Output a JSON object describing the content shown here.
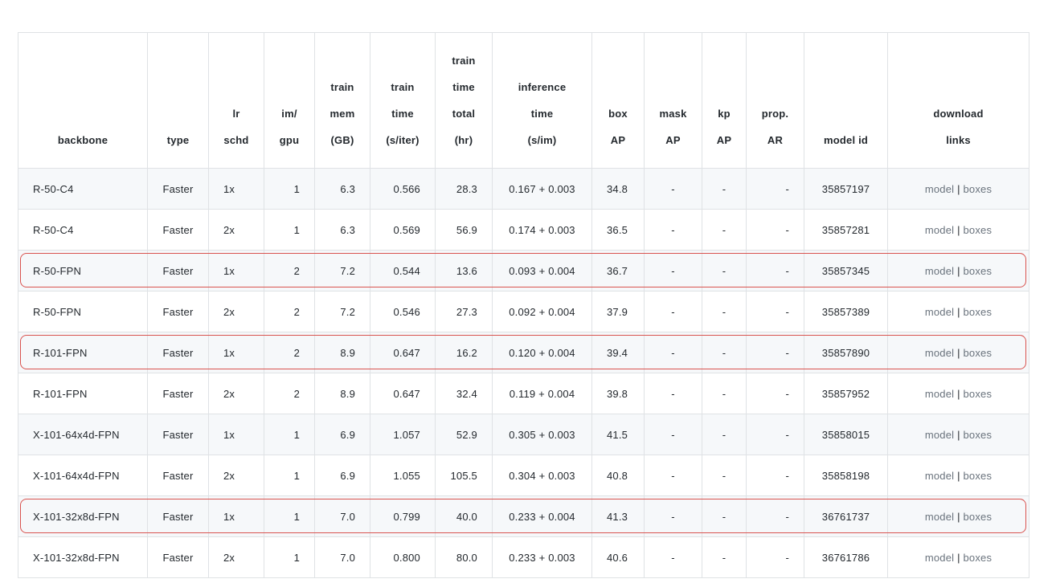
{
  "headers": [
    {
      "key": "backbone",
      "lines": [
        "backbone"
      ]
    },
    {
      "key": "type",
      "lines": [
        "type"
      ]
    },
    {
      "key": "lr_schd",
      "lines": [
        "lr",
        "schd"
      ]
    },
    {
      "key": "im_gpu",
      "lines": [
        "im/",
        "gpu"
      ]
    },
    {
      "key": "train_mem",
      "lines": [
        "train",
        "mem",
        "(GB)"
      ]
    },
    {
      "key": "train_time",
      "lines": [
        "train",
        "time",
        "(s/iter)"
      ]
    },
    {
      "key": "train_time_total",
      "lines": [
        "train",
        "time",
        "total",
        "(hr)"
      ]
    },
    {
      "key": "inference_time",
      "lines": [
        "inference",
        "time",
        "(s/im)"
      ]
    },
    {
      "key": "box_ap",
      "lines": [
        "box",
        "AP"
      ]
    },
    {
      "key": "mask_ap",
      "lines": [
        "mask",
        "AP"
      ]
    },
    {
      "key": "kp_ap",
      "lines": [
        "kp",
        "AP"
      ]
    },
    {
      "key": "prop_ar",
      "lines": [
        "prop.",
        "AR"
      ]
    },
    {
      "key": "model_id",
      "lines": [
        "model id"
      ]
    },
    {
      "key": "download_links",
      "lines": [
        "download",
        "links"
      ]
    }
  ],
  "rows": [
    {
      "backbone": "R-50-C4",
      "type": "Faster",
      "lr_schd": "1x",
      "im_gpu": "1",
      "train_mem": "6.3",
      "train_time": "0.566",
      "train_time_total": "28.3",
      "inference_time": "0.167 + 0.003",
      "box_ap": "34.8",
      "mask_ap": "-",
      "kp_ap": "-",
      "prop_ar": "-",
      "model_id": "35857197",
      "highlighted": false
    },
    {
      "backbone": "R-50-C4",
      "type": "Faster",
      "lr_schd": "2x",
      "im_gpu": "1",
      "train_mem": "6.3",
      "train_time": "0.569",
      "train_time_total": "56.9",
      "inference_time": "0.174 + 0.003",
      "box_ap": "36.5",
      "mask_ap": "-",
      "kp_ap": "-",
      "prop_ar": "-",
      "model_id": "35857281",
      "highlighted": false
    },
    {
      "backbone": "R-50-FPN",
      "type": "Faster",
      "lr_schd": "1x",
      "im_gpu": "2",
      "train_mem": "7.2",
      "train_time": "0.544",
      "train_time_total": "13.6",
      "inference_time": "0.093 + 0.004",
      "box_ap": "36.7",
      "mask_ap": "-",
      "kp_ap": "-",
      "prop_ar": "-",
      "model_id": "35857345",
      "highlighted": true
    },
    {
      "backbone": "R-50-FPN",
      "type": "Faster",
      "lr_schd": "2x",
      "im_gpu": "2",
      "train_mem": "7.2",
      "train_time": "0.546",
      "train_time_total": "27.3",
      "inference_time": "0.092 + 0.004",
      "box_ap": "37.9",
      "mask_ap": "-",
      "kp_ap": "-",
      "prop_ar": "-",
      "model_id": "35857389",
      "highlighted": false
    },
    {
      "backbone": "R-101-FPN",
      "type": "Faster",
      "lr_schd": "1x",
      "im_gpu": "2",
      "train_mem": "8.9",
      "train_time": "0.647",
      "train_time_total": "16.2",
      "inference_time": "0.120 + 0.004",
      "box_ap": "39.4",
      "mask_ap": "-",
      "kp_ap": "-",
      "prop_ar": "-",
      "model_id": "35857890",
      "highlighted": true
    },
    {
      "backbone": "R-101-FPN",
      "type": "Faster",
      "lr_schd": "2x",
      "im_gpu": "2",
      "train_mem": "8.9",
      "train_time": "0.647",
      "train_time_total": "32.4",
      "inference_time": "0.119 + 0.004",
      "box_ap": "39.8",
      "mask_ap": "-",
      "kp_ap": "-",
      "prop_ar": "-",
      "model_id": "35857952",
      "highlighted": false
    },
    {
      "backbone": "X-101-64x4d-FPN",
      "type": "Faster",
      "lr_schd": "1x",
      "im_gpu": "1",
      "train_mem": "6.9",
      "train_time": "1.057",
      "train_time_total": "52.9",
      "inference_time": "0.305 + 0.003",
      "box_ap": "41.5",
      "mask_ap": "-",
      "kp_ap": "-",
      "prop_ar": "-",
      "model_id": "35858015",
      "highlighted": false
    },
    {
      "backbone": "X-101-64x4d-FPN",
      "type": "Faster",
      "lr_schd": "2x",
      "im_gpu": "1",
      "train_mem": "6.9",
      "train_time": "1.055",
      "train_time_total": "105.5",
      "inference_time": "0.304 + 0.003",
      "box_ap": "40.8",
      "mask_ap": "-",
      "kp_ap": "-",
      "prop_ar": "-",
      "model_id": "35858198",
      "highlighted": false
    },
    {
      "backbone": "X-101-32x8d-FPN",
      "type": "Faster",
      "lr_schd": "1x",
      "im_gpu": "1",
      "train_mem": "7.0",
      "train_time": "0.799",
      "train_time_total": "40.0",
      "inference_time": "0.233 + 0.004",
      "box_ap": "41.3",
      "mask_ap": "-",
      "kp_ap": "-",
      "prop_ar": "-",
      "model_id": "36761737",
      "highlighted": true
    },
    {
      "backbone": "X-101-32x8d-FPN",
      "type": "Faster",
      "lr_schd": "2x",
      "im_gpu": "1",
      "train_mem": "7.0",
      "train_time": "0.800",
      "train_time_total": "80.0",
      "inference_time": "0.233 + 0.003",
      "box_ap": "40.6",
      "mask_ap": "-",
      "kp_ap": "-",
      "prop_ar": "-",
      "model_id": "36761786",
      "highlighted": false
    }
  ],
  "link_labels": {
    "model": "model",
    "separator": "|",
    "boxes": "boxes"
  },
  "colors": {
    "highlight_border": "#d9534f",
    "link": "#6a737d",
    "stripe": "#f6f8fa",
    "border": "#dfe2e5"
  }
}
